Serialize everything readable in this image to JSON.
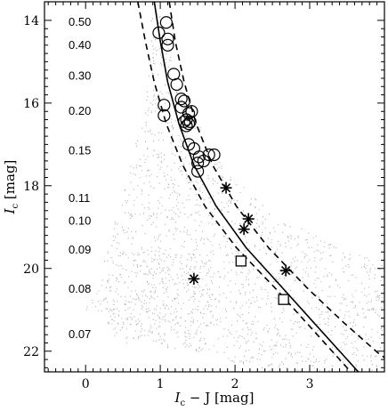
{
  "chart_data": {
    "type": "scatter",
    "xlabel": {
      "main": "I",
      "sub": "c",
      "rest": " − J [mag]"
    },
    "ylabel": {
      "main": "I",
      "sub": "c",
      "rest": " [mag]"
    },
    "xlim": [
      -0.55,
      4.0
    ],
    "ylim": [
      22.5,
      13.55
    ],
    "y_inverted": true,
    "x_ticks": [
      0,
      1,
      2,
      3
    ],
    "y_ticks": [
      14,
      16,
      18,
      20,
      22
    ],
    "mass_labels": [
      {
        "text": "0.50",
        "y": 14.05
      },
      {
        "text": "0.40",
        "y": 14.6
      },
      {
        "text": "0.30",
        "y": 15.35
      },
      {
        "text": "0.20",
        "y": 16.2
      },
      {
        "text": "0.15",
        "y": 17.15
      },
      {
        "text": "0.11",
        "y": 18.3
      },
      {
        "text": "0.10",
        "y": 18.85
      },
      {
        "text": "0.09",
        "y": 19.55
      },
      {
        "text": "0.08",
        "y": 20.5
      },
      {
        "text": "0.07",
        "y": 21.6
      }
    ],
    "series": [
      {
        "marker": "circle",
        "points": [
          [
            1.08,
            14.05
          ],
          [
            0.98,
            14.3
          ],
          [
            1.1,
            14.45
          ],
          [
            1.1,
            14.6
          ],
          [
            1.18,
            15.3
          ],
          [
            1.22,
            15.55
          ],
          [
            1.28,
            15.9
          ],
          [
            1.32,
            15.95
          ],
          [
            1.28,
            16.1
          ],
          [
            1.05,
            16.05
          ],
          [
            1.05,
            16.3
          ],
          [
            1.38,
            16.25
          ],
          [
            1.42,
            16.2
          ],
          [
            1.35,
            16.4
          ],
          [
            1.4,
            16.45
          ],
          [
            1.38,
            16.5
          ],
          [
            1.35,
            16.55
          ],
          [
            1.32,
            16.45
          ],
          [
            1.38,
            17.0
          ],
          [
            1.45,
            17.1
          ],
          [
            1.52,
            17.3
          ],
          [
            1.58,
            17.4
          ],
          [
            1.5,
            17.45
          ],
          [
            1.5,
            17.65
          ],
          [
            1.65,
            17.25
          ],
          [
            1.72,
            17.25
          ]
        ]
      },
      {
        "marker": "asterisk",
        "points": [
          [
            1.88,
            18.05
          ],
          [
            2.18,
            18.8
          ],
          [
            2.12,
            19.05
          ],
          [
            2.68,
            20.05
          ],
          [
            1.45,
            20.25
          ]
        ]
      },
      {
        "marker": "square",
        "points": [
          [
            2.08,
            19.82
          ],
          [
            2.65,
            20.75
          ]
        ]
      }
    ],
    "lines": [
      {
        "style": "solid",
        "points": [
          [
            0.92,
            13.55
          ],
          [
            1.0,
            14.5
          ],
          [
            1.1,
            15.5
          ],
          [
            1.25,
            16.5
          ],
          [
            1.45,
            17.5
          ],
          [
            1.75,
            18.5
          ],
          [
            2.15,
            19.5
          ],
          [
            2.65,
            20.5
          ],
          [
            3.05,
            21.3
          ],
          [
            3.45,
            22.1
          ],
          [
            3.65,
            22.5
          ]
        ]
      },
      {
        "style": "dashed",
        "points": [
          [
            0.7,
            13.55
          ],
          [
            0.8,
            14.5
          ],
          [
            0.92,
            15.5
          ],
          [
            1.08,
            16.5
          ],
          [
            1.3,
            17.5
          ],
          [
            1.6,
            18.5
          ],
          [
            2.02,
            19.5
          ],
          [
            2.55,
            20.5
          ],
          [
            2.95,
            21.3
          ],
          [
            3.35,
            22.1
          ],
          [
            3.55,
            22.5
          ]
        ]
      },
      {
        "style": "dashed",
        "points": [
          [
            1.12,
            13.55
          ],
          [
            1.2,
            14.5
          ],
          [
            1.32,
            15.5
          ],
          [
            1.48,
            16.5
          ],
          [
            1.7,
            17.5
          ],
          [
            2.02,
            18.5
          ],
          [
            2.45,
            19.5
          ],
          [
            2.98,
            20.5
          ],
          [
            3.45,
            21.3
          ],
          [
            3.95,
            22.1
          ],
          [
            4.0,
            22.15
          ]
        ]
      }
    ],
    "background": {
      "description": "grey field-star point cloud",
      "color": "#9a9a9a"
    }
  }
}
